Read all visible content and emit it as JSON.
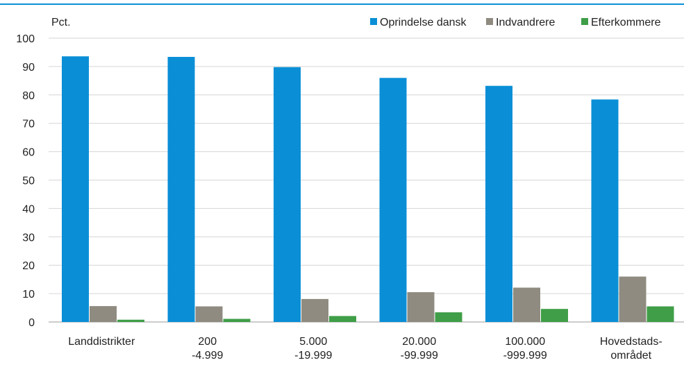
{
  "chart_data": {
    "type": "bar",
    "ylabel": "Pct.",
    "ylim": [
      0,
      100
    ],
    "yticks": [
      0,
      10,
      20,
      30,
      40,
      50,
      60,
      70,
      80,
      90,
      100
    ],
    "grid": true,
    "legend_position": "top-right",
    "categories": [
      [
        "Landdistrikter"
      ],
      [
        "200",
        "-4.999"
      ],
      [
        "5.000",
        "-19.999"
      ],
      [
        "20.000",
        "-99.999"
      ],
      [
        "100.000",
        "-999.999"
      ],
      [
        "Hovedstads-",
        "området"
      ]
    ],
    "series": [
      {
        "name": "Oprindelse dansk",
        "color": "#0a8fd6",
        "values": [
          93.6,
          93.4,
          89.8,
          86.0,
          83.2,
          78.4
        ]
      },
      {
        "name": "Indvandrere",
        "color": "#8f8b80",
        "values": [
          5.6,
          5.5,
          8.1,
          10.5,
          12.1,
          16.0
        ]
      },
      {
        "name": "Efterkommere",
        "color": "#3f9e47",
        "values": [
          0.8,
          1.1,
          2.1,
          3.4,
          4.6,
          5.5
        ]
      }
    ]
  }
}
